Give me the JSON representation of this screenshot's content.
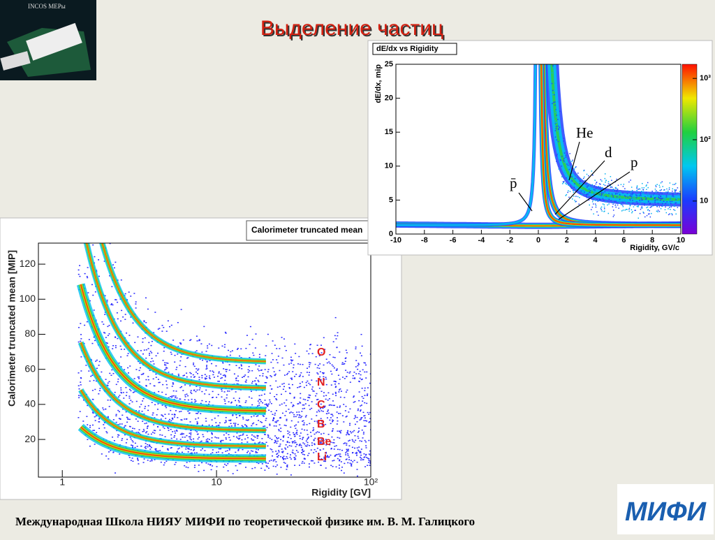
{
  "header": {
    "title": "Выделение частиц",
    "logo_text": "INCOS МЕРы"
  },
  "plot_top": {
    "type": "heatmap",
    "title": "dE/dx vs Rigidity",
    "x_label": "Rigidity, GV/c",
    "y_label": "dE/dx, mip",
    "xlim": [
      -10,
      10
    ],
    "xticks": [
      -10,
      -8,
      -6,
      -4,
      -2,
      0,
      2,
      4,
      6,
      8,
      10
    ],
    "ylim": [
      0,
      25
    ],
    "yticks": [
      0,
      5,
      10,
      15,
      20,
      25
    ],
    "zlim": [
      2.9,
      1700
    ],
    "zlog": true,
    "zticks": [
      10,
      {
        "value": 100,
        "label": "10²"
      },
      {
        "value": 1000,
        "label": "10³"
      }
    ],
    "annotations": [
      "p̄",
      "He",
      "d",
      "p"
    ]
  },
  "plot_bottom": {
    "type": "heatmap",
    "title": "Calorimeter truncated mean",
    "x_label": "Rigidity [GV]",
    "y_label": "Calorimeter truncated mean [MIP]",
    "xlog": true,
    "xlim": [
      0.7,
      100
    ],
    "xticks": [
      1,
      10,
      {
        "value": 100,
        "label": "10²"
      }
    ],
    "ylim": [
      -1.5,
      132
    ],
    "yticks": [
      20,
      40,
      60,
      80,
      100,
      120
    ],
    "annotations": [
      "O",
      "N",
      "C",
      "B",
      "Be",
      "Li"
    ]
  },
  "footer": {
    "text": "Международная Школа НИЯУ МИФИ по теоретической физике им. В. М. Галицкого",
    "logo_text": "МИФИ"
  }
}
